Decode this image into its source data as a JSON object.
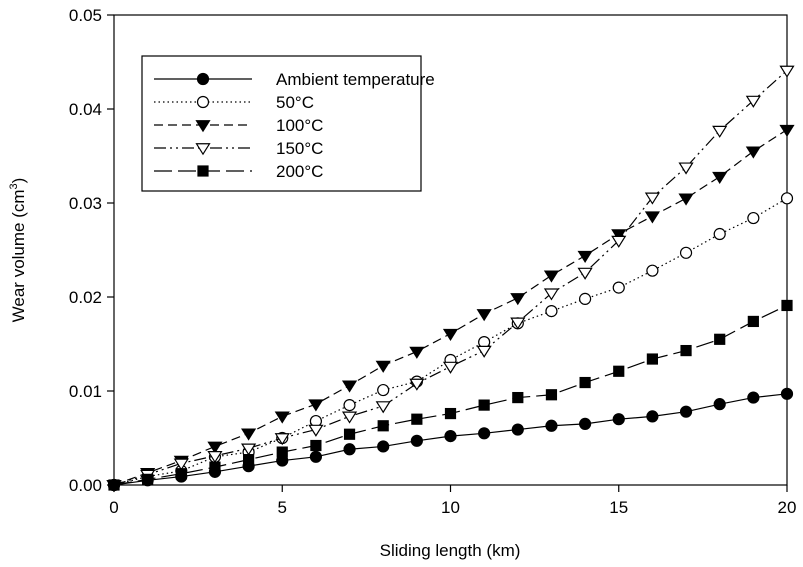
{
  "chart_data": {
    "type": "line",
    "title": "",
    "xlabel": "Sliding length (km)",
    "ylabel": "Wear volume (cm",
    "ylabel_sup": "3",
    "ylabel_end": ")",
    "xlim": [
      0,
      20
    ],
    "ylim": [
      0,
      0.05
    ],
    "x_ticks": [
      0,
      5,
      10,
      15,
      20
    ],
    "x_tick_labels": [
      "0",
      "5",
      "10",
      "15",
      "20"
    ],
    "y_ticks": [
      0,
      0.01,
      0.02,
      0.03,
      0.04,
      0.05
    ],
    "y_tick_labels": [
      "0.00",
      "0.01",
      "0.02",
      "0.03",
      "0.04",
      "0.05"
    ],
    "grid": false,
    "legend_position": "top-left",
    "x": [
      0,
      1,
      2,
      3,
      4,
      5,
      6,
      7,
      8,
      9,
      10,
      11,
      12,
      13,
      14,
      15,
      16,
      17,
      18,
      19,
      20
    ],
    "series": [
      {
        "name": "Ambient temperature",
        "marker": "filled-circle",
        "dash": "solid",
        "values": [
          0,
          0.0005,
          0.0009,
          0.0014,
          0.002,
          0.0026,
          0.003,
          0.0038,
          0.0041,
          0.0047,
          0.0052,
          0.0055,
          0.0059,
          0.0063,
          0.0065,
          0.007,
          0.0073,
          0.0078,
          0.0086,
          0.0093,
          0.0097
        ]
      },
      {
        "name": "50°C",
        "marker": "open-circle",
        "dash": "dotted",
        "values": [
          0,
          0.0009,
          0.0015,
          0.003,
          0.0035,
          0.005,
          0.0068,
          0.0085,
          0.0101,
          0.011,
          0.0133,
          0.0152,
          0.0172,
          0.0185,
          0.0198,
          0.021,
          0.0228,
          0.0247,
          0.0267,
          0.0284,
          0.0305
        ]
      },
      {
        "name": "100°C",
        "marker": "filled-triangle-down",
        "dash": "dashed",
        "values": [
          0,
          0.0013,
          0.0026,
          0.0041,
          0.0055,
          0.0073,
          0.0086,
          0.0106,
          0.0127,
          0.0142,
          0.0161,
          0.0182,
          0.0199,
          0.0223,
          0.0244,
          0.0267,
          0.0286,
          0.0305,
          0.0328,
          0.0355,
          0.0378
        ]
      },
      {
        "name": "150°C",
        "marker": "open-triangle-down",
        "dash": "dash-dot-dot",
        "values": [
          0,
          0.0011,
          0.0023,
          0.0031,
          0.0039,
          0.005,
          0.0059,
          0.0073,
          0.0084,
          0.0108,
          0.0126,
          0.0143,
          0.0173,
          0.0204,
          0.0226,
          0.026,
          0.0306,
          0.0338,
          0.0377,
          0.0409,
          0.0441
        ]
      },
      {
        "name": "200°C",
        "marker": "filled-square",
        "dash": "long-dash",
        "values": [
          0,
          0.0006,
          0.0012,
          0.0019,
          0.0027,
          0.0035,
          0.0042,
          0.0054,
          0.0063,
          0.007,
          0.0076,
          0.0085,
          0.0093,
          0.0096,
          0.0109,
          0.0121,
          0.0134,
          0.0143,
          0.0155,
          0.0174,
          0.0191
        ]
      }
    ]
  }
}
